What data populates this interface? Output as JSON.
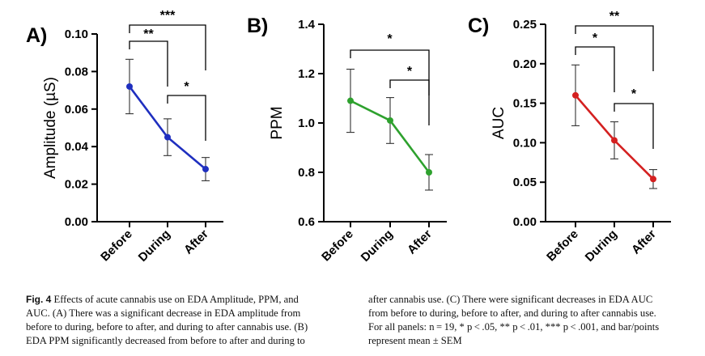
{
  "chart_data": [
    {
      "type": "line",
      "panel": "A)",
      "categories": [
        "Before",
        "During",
        "After"
      ],
      "ylabel": "Amplitude (µS)",
      "ylim": [
        0,
        0.1
      ],
      "yticks": [
        "0.00",
        "0.02",
        "0.04",
        "0.06",
        "0.08",
        "0.10"
      ],
      "color": "#1f2fbf",
      "series": [
        {
          "values": [
            0.072,
            0.045,
            0.028
          ],
          "sem": [
            0.0145,
            0.0098,
            0.0062
          ]
        }
      ],
      "significance": [
        {
          "from": "Before",
          "to": "After",
          "label": "***"
        },
        {
          "from": "Before",
          "to": "During",
          "label": "**"
        },
        {
          "from": "During",
          "to": "After",
          "label": "*"
        }
      ]
    },
    {
      "type": "line",
      "panel": "B)",
      "categories": [
        "Before",
        "During",
        "After"
      ],
      "ylabel": "PPM",
      "ylim": [
        0.6,
        1.4
      ],
      "yticks": [
        "0.6",
        "0.8",
        "1.0",
        "1.2",
        "1.4"
      ],
      "color": "#2ea12e",
      "series": [
        {
          "values": [
            1.09,
            1.01,
            0.8
          ],
          "sem": [
            0.128,
            0.093,
            0.072
          ]
        }
      ],
      "significance": [
        {
          "from": "Before",
          "to": "After",
          "label": "*"
        },
        {
          "from": "During",
          "to": "After",
          "label": "*"
        }
      ]
    },
    {
      "type": "line",
      "panel": "C)",
      "categories": [
        "Before",
        "During",
        "After"
      ],
      "ylabel": "AUC",
      "ylim": [
        0,
        0.25
      ],
      "yticks": [
        "0.00",
        "0.05",
        "0.10",
        "0.15",
        "0.20",
        "0.25"
      ],
      "color": "#d42020",
      "series": [
        {
          "values": [
            0.16,
            0.103,
            0.054
          ],
          "sem": [
            0.0385,
            0.0235,
            0.012
          ]
        }
      ],
      "significance": [
        {
          "from": "Before",
          "to": "After",
          "label": "**"
        },
        {
          "from": "Before",
          "to": "During",
          "label": "*"
        },
        {
          "from": "During",
          "to": "After",
          "label": "*"
        }
      ]
    }
  ],
  "caption": {
    "fig_label": "Fig. 4",
    "left": [
      "Effects of acute cannabis use on EDA Amplitude, PPM, and",
      "AUC. (A) There was a significant decrease in EDA amplitude from",
      "before to during, before to after, and during to after cannabis use. (B)",
      "EDA PPM significantly decreased from before to after and during to"
    ],
    "right": [
      "after cannabis use. (C) There were significant decreases in EDA AUC",
      "from before to during, before to after, and during to after cannabis use.",
      "For all panels: n = 19, * p < .05, ** p < .01, *** p < .001, and bar/points",
      "represent mean ± SEM"
    ]
  }
}
